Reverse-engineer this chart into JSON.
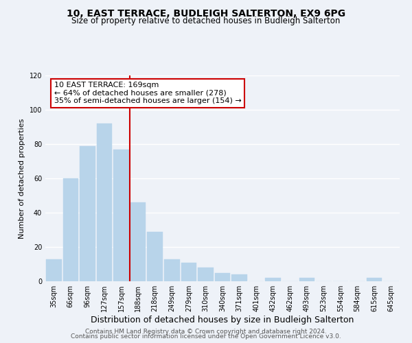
{
  "title": "10, EAST TERRACE, BUDLEIGH SALTERTON, EX9 6PG",
  "subtitle": "Size of property relative to detached houses in Budleigh Salterton",
  "xlabel": "Distribution of detached houses by size in Budleigh Salterton",
  "ylabel": "Number of detached properties",
  "bar_labels": [
    "35sqm",
    "66sqm",
    "96sqm",
    "127sqm",
    "157sqm",
    "188sqm",
    "218sqm",
    "249sqm",
    "279sqm",
    "310sqm",
    "340sqm",
    "371sqm",
    "401sqm",
    "432sqm",
    "462sqm",
    "493sqm",
    "523sqm",
    "554sqm",
    "584sqm",
    "615sqm",
    "645sqm"
  ],
  "bar_values": [
    13,
    60,
    79,
    92,
    77,
    46,
    29,
    13,
    11,
    8,
    5,
    4,
    0,
    2,
    0,
    2,
    0,
    0,
    0,
    2,
    0
  ],
  "bar_color": "#b8d4ea",
  "vline_bar_index": 4,
  "vline_color": "#cc0000",
  "annotation_line1": "10 EAST TERRACE: 169sqm",
  "annotation_line2": "← 64% of detached houses are smaller (278)",
  "annotation_line3": "35% of semi-detached houses are larger (154) →",
  "annotation_box_edgecolor": "#cc0000",
  "annotation_box_facecolor": "#ffffff",
  "ylim": [
    0,
    120
  ],
  "yticks": [
    0,
    20,
    40,
    60,
    80,
    100,
    120
  ],
  "footer_line1": "Contains HM Land Registry data © Crown copyright and database right 2024.",
  "footer_line2": "Contains public sector information licensed under the Open Government Licence v3.0.",
  "bg_color": "#eef2f8",
  "grid_color": "#ffffff",
  "title_fontsize": 10,
  "subtitle_fontsize": 8.5,
  "xlabel_fontsize": 9,
  "ylabel_fontsize": 8,
  "tick_fontsize": 7,
  "annotation_fontsize": 8,
  "footer_fontsize": 6.5
}
